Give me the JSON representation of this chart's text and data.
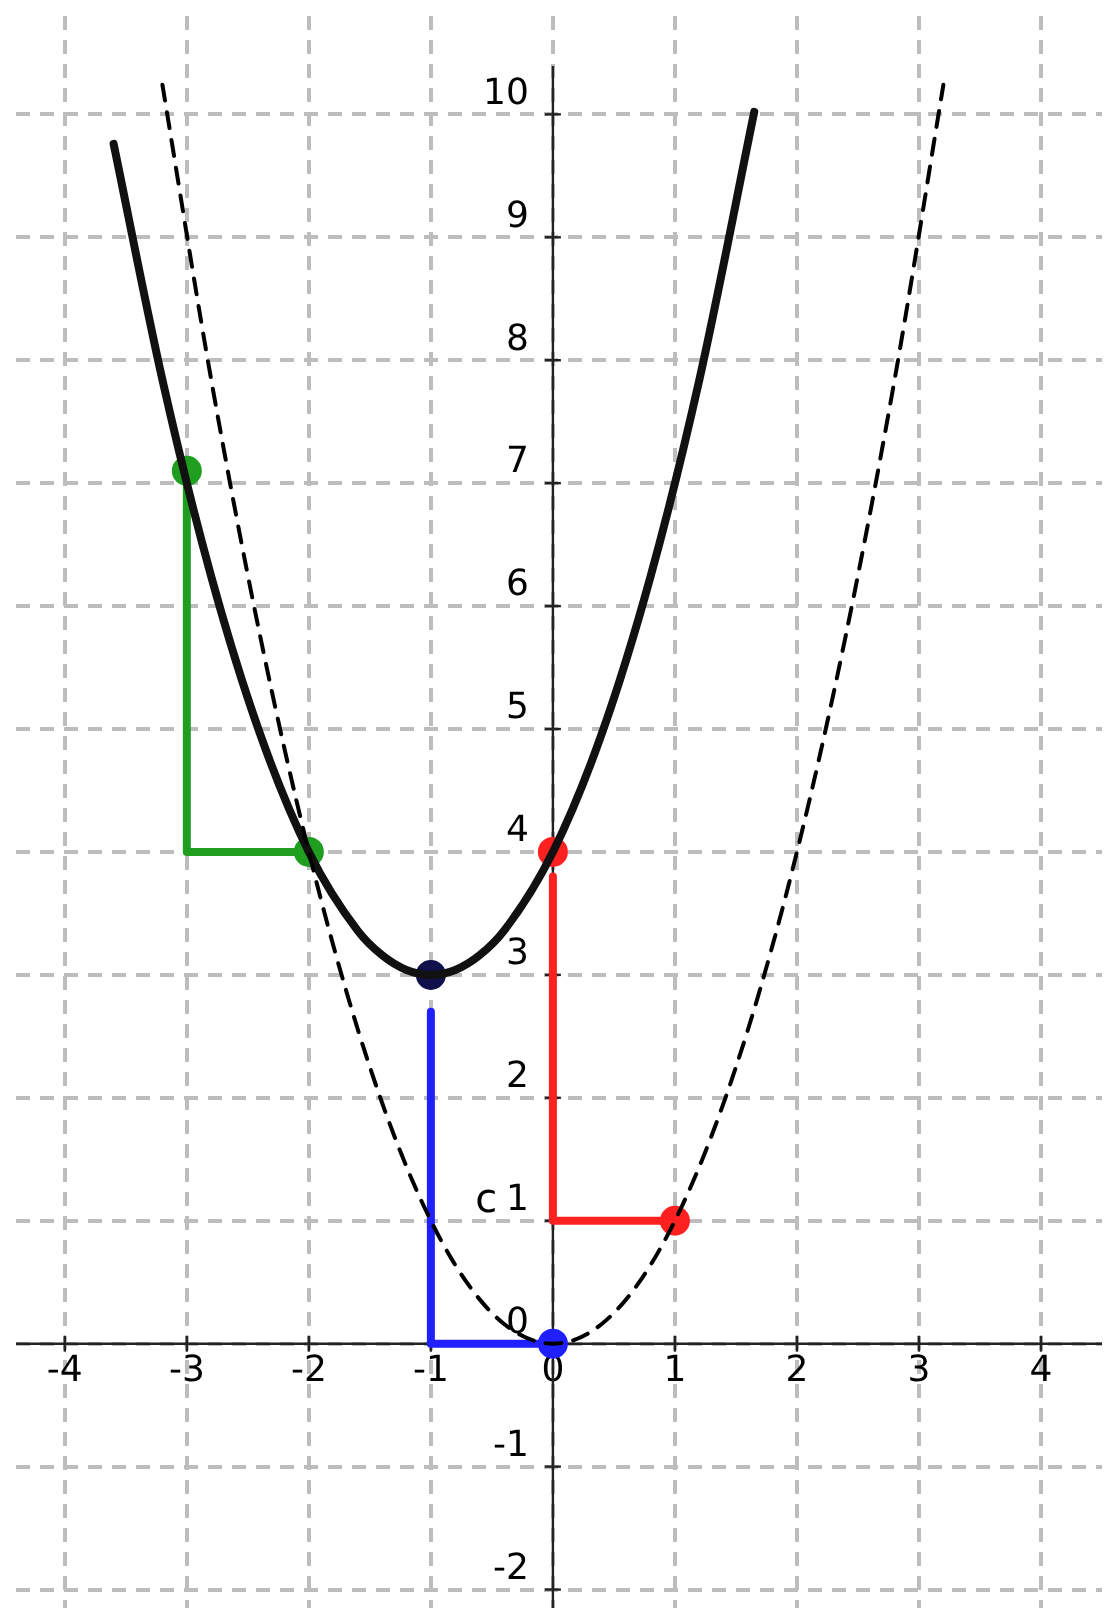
{
  "chart_data": {
    "type": "line",
    "xlim": [
      -4.4,
      4.5
    ],
    "ylim": [
      -2.15,
      10.8
    ],
    "xticks": [
      -4,
      -3,
      -2,
      -1,
      0,
      1,
      2,
      3,
      4
    ],
    "yticks": [
      -2,
      -1,
      0,
      1,
      2,
      3,
      4,
      5,
      6,
      7,
      8,
      9,
      10
    ],
    "grid": true,
    "legend": false,
    "marker": "none",
    "annotations": [
      "c"
    ],
    "series": [
      {
        "color": "#000000",
        "line_style": "dashed",
        "x": [
          -3.2,
          -2.8,
          -2.4,
          -2,
          -1.6,
          -1.2,
          -0.8,
          -0.4,
          0,
          0.4,
          0.8,
          1.2,
          1.6,
          2,
          2.4,
          2.8,
          3.2
        ],
        "values": [
          10.24,
          7.84,
          5.76,
          4,
          2.56,
          1.44,
          0.64,
          0.16,
          0,
          0.16,
          0.64,
          1.44,
          2.56,
          4,
          5.76,
          7.84,
          10.24
        ]
      },
      {
        "color": "#111111",
        "line_style": "solid",
        "x": [
          -3.6,
          -3.2,
          -2.8,
          -2.4,
          -2,
          -1.6,
          -1.4,
          -1.2,
          -1,
          -0.8,
          -0.6,
          -0.4,
          0,
          0.4,
          0.8,
          1.2,
          1.65
        ],
        "values": [
          9.76,
          7.84,
          6.24,
          4.96,
          4,
          3.36,
          3.16,
          3.04,
          3,
          3.04,
          3.16,
          3.36,
          4,
          4.96,
          6.24,
          7.84,
          10.02
        ]
      },
      {
        "color": "#1f9e1f",
        "line_style": "solid",
        "x": [
          -2,
          -3,
          -3
        ],
        "values": [
          4,
          4,
          7
        ]
      },
      {
        "color": "#ff2020",
        "line_style": "solid",
        "x": [
          1,
          0,
          0
        ],
        "values": [
          1,
          1,
          3.8
        ]
      },
      {
        "color": "#2020ff",
        "line_style": "solid",
        "x": [
          0,
          -1,
          -1
        ],
        "values": [
          0,
          0,
          2.7
        ]
      },
      {
        "type": "scatter",
        "marker": "circle",
        "colors": [
          "#ff2020",
          "#ff2020",
          "#1f9e1f",
          "#1f9e1f",
          "#2020ff",
          "#10104a"
        ],
        "x": [
          1,
          0,
          -2,
          -3,
          0,
          -1
        ],
        "values": [
          1,
          4,
          4,
          7.1,
          0,
          3
        ]
      }
    ]
  }
}
